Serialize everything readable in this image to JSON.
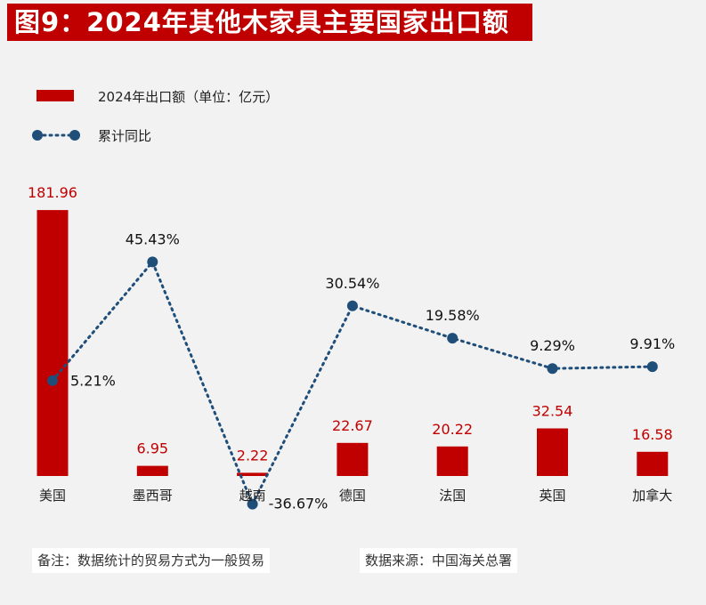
{
  "title": "图9：2024年其他木家具主要国家出口额",
  "notes": {
    "remark": "备注：数据统计的贸易方式为一般贸易",
    "source": "数据来源：中国海关总署"
  },
  "chart_data": {
    "type": "bar",
    "categories": [
      "美国",
      "墨西哥",
      "越南",
      "德国",
      "法国",
      "英国",
      "加拿大"
    ],
    "series": [
      {
        "name": "2024年出口额（单位：亿元）",
        "type": "bar",
        "values": [
          181.96,
          6.95,
          2.22,
          22.67,
          20.22,
          32.54,
          16.58
        ],
        "labels": [
          "181.96",
          "6.95",
          "2.22",
          "22.67",
          "20.22",
          "32.54",
          "16.58"
        ],
        "color": "#c00000"
      },
      {
        "name": "累计同比",
        "type": "line",
        "values": [
          5.21,
          45.43,
          -36.67,
          30.54,
          19.58,
          9.29,
          9.91
        ],
        "labels": [
          "5.21%",
          "45.43%",
          "-36.67%",
          "30.54%",
          "19.58%",
          "9.29%",
          "9.91%"
        ],
        "color": "#1f4e79"
      }
    ],
    "grid": false,
    "legend": "top-left"
  }
}
